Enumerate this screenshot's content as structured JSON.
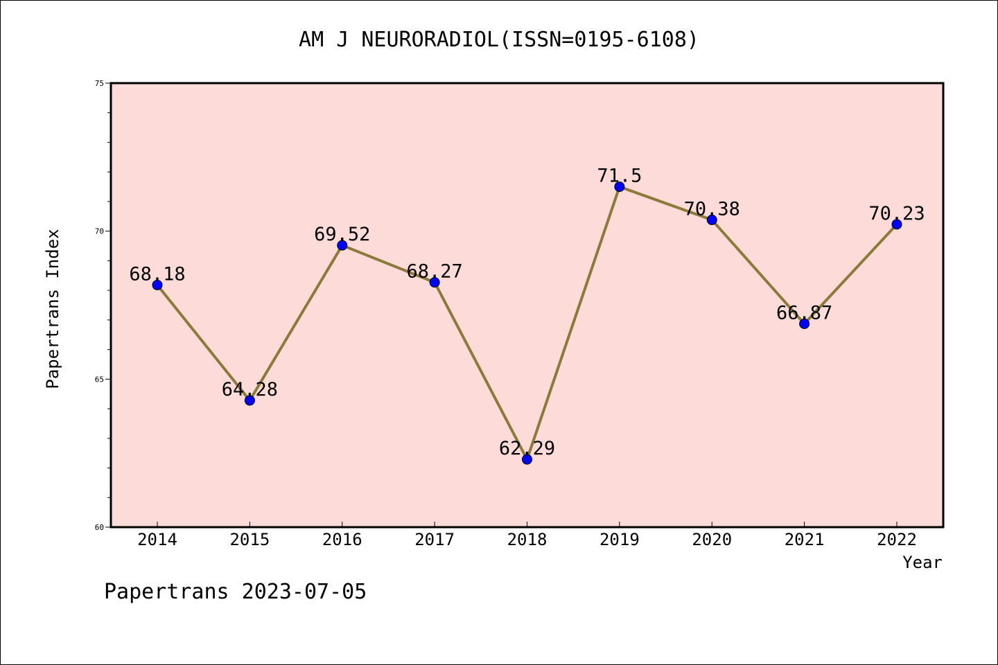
{
  "chart_data": {
    "type": "line",
    "title": "AM J NEURORADIOL(ISSN=0195-6108)",
    "xlabel": "Year",
    "ylabel": "Papertrans Index",
    "categories": [
      "2014",
      "2015",
      "2016",
      "2017",
      "2018",
      "2019",
      "2020",
      "2021",
      "2022"
    ],
    "values": [
      68.18,
      64.28,
      69.52,
      68.27,
      62.29,
      71.5,
      70.38,
      66.87,
      70.23
    ],
    "data_labels": [
      "68.18",
      "64.28",
      "69.52",
      "68.27",
      "62.29",
      "71.5",
      "70.38",
      "66.87",
      "70.23"
    ],
    "ylim": [
      60,
      75
    ],
    "yticks": [
      60,
      65,
      70,
      75
    ],
    "grid": false,
    "legend": "none",
    "colors": {
      "plot_background": "#fddbd9",
      "line": "#8c7a3a",
      "marker": "#0000ff"
    }
  },
  "footer": {
    "text": "Papertrans 2023-07-05"
  }
}
